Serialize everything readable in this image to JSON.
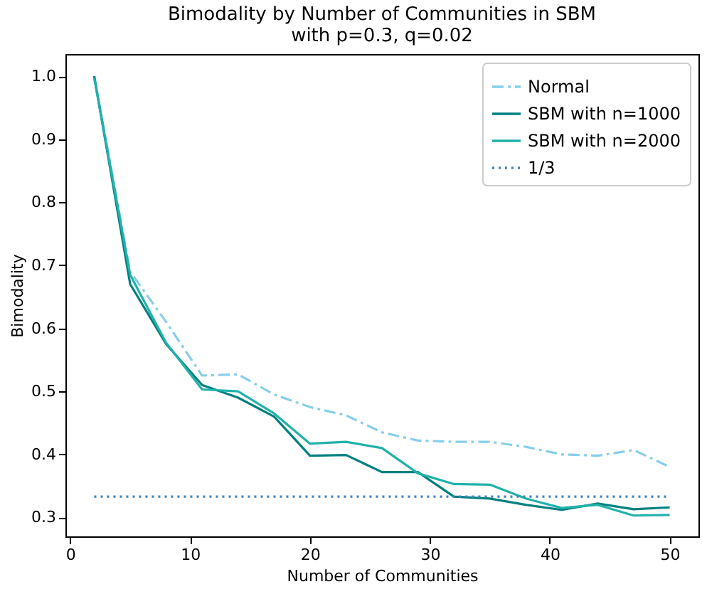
{
  "chart_data": {
    "type": "line",
    "title": "Bimodality by Number of Communities in SBM\nwith p=0.3, q=0.02",
    "xlabel": "Number of Communities",
    "ylabel": "Bimodality",
    "x": [
      2,
      5,
      8,
      11,
      14,
      17,
      20,
      23,
      26,
      29,
      32,
      35,
      38,
      41,
      44,
      47,
      50
    ],
    "series": [
      {
        "name": "Normal",
        "color": "#87ceeb",
        "line_style": "dashdot",
        "values": [
          1.0,
          0.69,
          0.61,
          0.525,
          0.527,
          0.495,
          0.475,
          0.462,
          0.435,
          0.422,
          0.42,
          0.42,
          0.412,
          0.4,
          0.398,
          0.407,
          0.38
        ]
      },
      {
        "name": "SBM with n=1000",
        "color": "#008080",
        "line_style": "solid",
        "values": [
          1.0,
          0.67,
          0.575,
          0.51,
          0.49,
          0.46,
          0.398,
          0.399,
          0.372,
          0.372,
          0.333,
          0.33,
          0.32,
          0.312,
          0.322,
          0.313,
          0.316
        ]
      },
      {
        "name": "SBM with n=2000",
        "color": "#20b2aa",
        "line_style": "solid",
        "values": [
          0.997,
          0.685,
          0.577,
          0.503,
          0.5,
          0.465,
          0.417,
          0.42,
          0.41,
          0.37,
          0.353,
          0.352,
          0.33,
          0.315,
          0.32,
          0.303,
          0.304
        ]
      },
      {
        "name": "1/3",
        "color": "#4682b4",
        "line_style": "dotted",
        "values": [
          0.333,
          0.333,
          0.333,
          0.333,
          0.333,
          0.333,
          0.333,
          0.333,
          0.333,
          0.333,
          0.333,
          0.333,
          0.333,
          0.333,
          0.333,
          0.333,
          0.333
        ]
      }
    ],
    "xlim": [
      -0.4,
      52.4
    ],
    "ylim": [
      0.27,
      1.035
    ],
    "xticks": [
      0,
      10,
      20,
      30,
      40,
      50
    ],
    "yticks": [
      {
        "value": 0.3,
        "label": "0.3"
      },
      {
        "value": 0.4,
        "label": "0.4"
      },
      {
        "value": 0.5,
        "label": "0.5"
      },
      {
        "value": 0.6,
        "label": "0.6"
      },
      {
        "value": 0.7,
        "label": "0.7"
      },
      {
        "value": 0.8,
        "label": "0.8"
      },
      {
        "value": 0.9,
        "label": "0.9"
      },
      {
        "value": 1.0,
        "label": "1.0"
      }
    ],
    "grid": false,
    "legend": "top right"
  }
}
